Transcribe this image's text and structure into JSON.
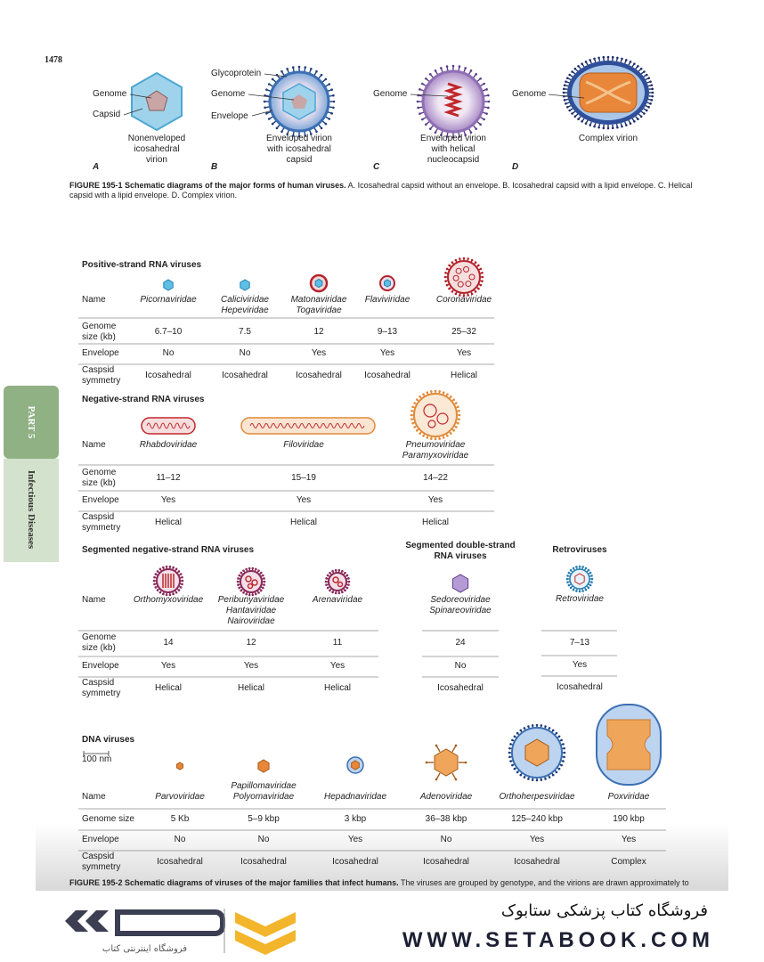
{
  "page_number": "1478",
  "figure1": {
    "labels": {
      "glycoprotein": "Glycoprotein",
      "genome_a": "Genome",
      "capsid": "Capsid",
      "genome_b": "Genome",
      "envelope": "Envelope",
      "genome_c": "Genome",
      "genome_d": "Genome"
    },
    "panels": [
      {
        "letter": "A",
        "caption": "Nonenveloped\nicosahedral\nvirion"
      },
      {
        "letter": "B",
        "caption": "Enveloped virion\nwith icosahedral\ncapsid"
      },
      {
        "letter": "C",
        "caption": "Enveloped virion\nwith helical\nnucleocapsid"
      },
      {
        "letter": "D",
        "caption": "Complex virion"
      }
    ],
    "caption": {
      "label": "FIGURE 195-1",
      "title": "Schematic diagrams of the major forms of human viruses.",
      "text": "A. Icosahedral capsid without an envelope. B. Icosahedral capsid with a lipid envelope. C. Helical capsid with a lipid envelope. D. Complex virion."
    }
  },
  "side_tab": {
    "part": "PART 5",
    "title": "Infectious Diseases"
  },
  "virus_table": {
    "sections": [
      {
        "title": "Positive-strand RNA viruses",
        "row_labels": [
          "Name",
          "Genome\nsize (kb)",
          "Envelope",
          "Caspsid\nsymmetry"
        ],
        "columns": [
          {
            "name": "Picornaviridae",
            "genome_size": "6.7–10",
            "envelope": "No",
            "symmetry": "Icosahedral"
          },
          {
            "name": "Caliciviridae\nHepeviridae",
            "genome_size": "7.5",
            "envelope": "No",
            "symmetry": "Icosahedral"
          },
          {
            "name": "Matonaviridae\nTogaviridae",
            "genome_size": "12",
            "envelope": "Yes",
            "symmetry": "Icosahedral"
          },
          {
            "name": "Flaviviridae",
            "genome_size": "9–13",
            "envelope": "Yes",
            "symmetry": "Icosahedral"
          },
          {
            "name": "Coronaviridae",
            "genome_size": "25–32",
            "envelope": "Yes",
            "symmetry": "Helical"
          }
        ]
      },
      {
        "title": "Negative-strand RNA viruses",
        "row_labels": [
          "Name",
          "Genome\nsize (kb)",
          "Envelope",
          "Caspsid\nsymmetry"
        ],
        "columns": [
          {
            "name": "Rhabdoviridae",
            "genome_size": "11–12",
            "envelope": "Yes",
            "symmetry": "Helical"
          },
          {
            "name": "Filoviridae",
            "genome_size": "15–19",
            "envelope": "Yes",
            "symmetry": "Helical"
          },
          {
            "name": "Pneumoviridae\nParamyxoviridae",
            "genome_size": "14–22",
            "envelope": "Yes",
            "symmetry": "Helical"
          }
        ]
      },
      {
        "title": "Segmented negative-strand RNA viruses",
        "row_labels": [
          "Name",
          "Genome\nsize (kb)",
          "Envelope",
          "Caspsid\nsymmetry"
        ],
        "columns": [
          {
            "name": "Orthomyxoviridae",
            "genome_size": "14",
            "envelope": "Yes",
            "symmetry": "Helical"
          },
          {
            "name": "Peribunyaviridae\nHantaviridae\nNairoviridae",
            "genome_size": "12",
            "envelope": "Yes",
            "symmetry": "Helical"
          },
          {
            "name": "Arenaviridae",
            "genome_size": "11",
            "envelope": "Yes",
            "symmetry": "Helical"
          }
        ]
      },
      {
        "title": "Segmented double-strand\nRNA viruses",
        "columns": [
          {
            "name": "Sedoreoviridae\nSpinareoviridae",
            "genome_size": "24",
            "envelope": "No",
            "symmetry": "Icosahedral"
          }
        ]
      },
      {
        "title": "Retroviruses",
        "columns": [
          {
            "name": "Retroviridae",
            "genome_size": "7–13",
            "envelope": "Yes",
            "symmetry": "Icosahedral"
          }
        ]
      },
      {
        "title": "DNA viruses",
        "scale": "100 nm",
        "row_labels": [
          "Name",
          "Genome size",
          "Envelope",
          "Caspsid\nsymmetry"
        ],
        "columns": [
          {
            "name": "Parvoviridae",
            "genome_size": "5 Kb",
            "envelope": "No",
            "symmetry": "Icosahedral"
          },
          {
            "name": "Papillomaviridae\nPolyomaviridae",
            "genome_size": "5–9 kbp",
            "envelope": "No",
            "symmetry": "Icosahedral"
          },
          {
            "name": "Hepadnaviridae",
            "genome_size": "3 kbp",
            "envelope": "Yes",
            "symmetry": "Icosahedral"
          },
          {
            "name": "Adenoviridae",
            "genome_size": "36–38 kbp",
            "envelope": "No",
            "symmetry": "Icosahedral"
          },
          {
            "name": "Orthoherpesviridae",
            "genome_size": "125–240 kbp",
            "envelope": "Yes",
            "symmetry": "Icosahedral"
          },
          {
            "name": "Poxviridae",
            "genome_size": "190 kbp",
            "envelope": "Yes",
            "symmetry": "Complex"
          }
        ]
      }
    ]
  },
  "figure2_caption": {
    "label": "FIGURE 195-2",
    "title": "Schematic diagrams of viruses of the major families that infect humans.",
    "text": "The viruses are grouped by genotype, and the virions are drawn approximately to"
  },
  "footer": {
    "store_name": "فروشگاه کتاب پزشکی ستابوک",
    "website": "WWW.SETABOOK.COM",
    "logo_caption": "فروشگاه اینترنتی کتاب"
  }
}
